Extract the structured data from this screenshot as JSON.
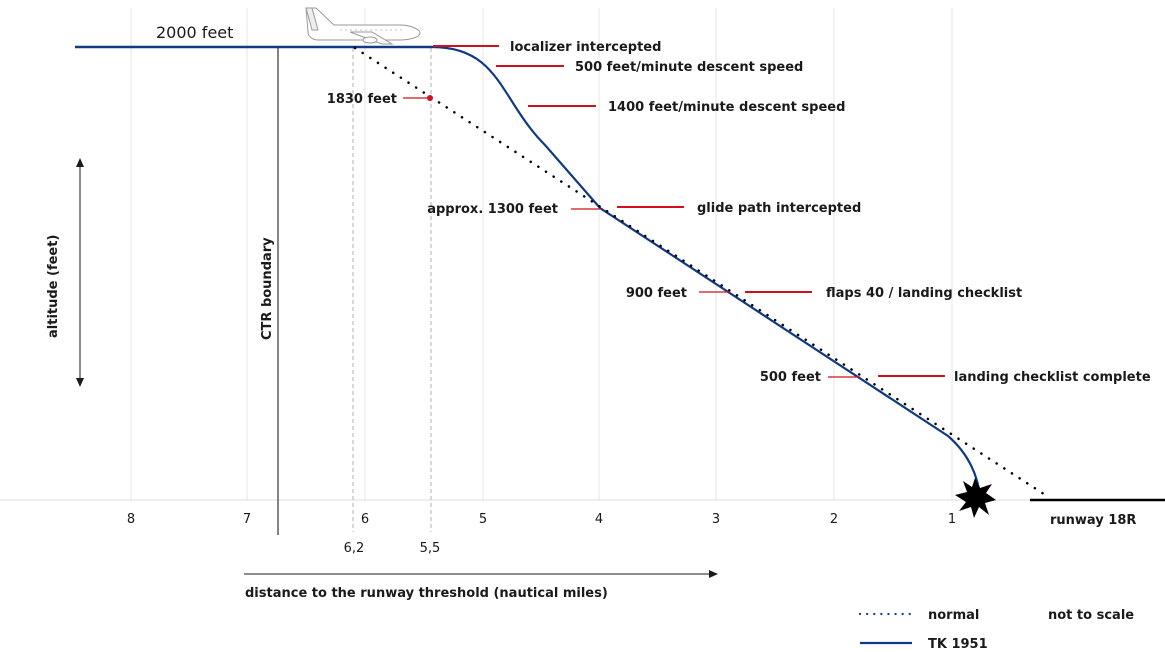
{
  "colors": {
    "normal": "#123a82",
    "tk1951": "#123a82",
    "annotation": "#d0101c",
    "axis": "#000000",
    "grid": "#e6e6e6"
  },
  "icons": {
    "aircraft": "airplane-icon",
    "crash": "impact-burst-icon"
  },
  "altitude_start": "2000 feet",
  "x_axis": {
    "label": "distance to the runway threshold (nautical miles)",
    "ticks": [
      "8",
      "7",
      "6",
      "5",
      "4",
      "3",
      "2",
      "1"
    ],
    "markers": [
      "6,2",
      "5,5"
    ]
  },
  "y_axis": {
    "label": "altitude (feet)"
  },
  "ctr_boundary": "CTR boundary",
  "runway": "runway 18R",
  "altitudes": {
    "a1830": "1830 feet",
    "a1300": "approx. 1300 feet",
    "a900": "900 feet",
    "a500": "500 feet"
  },
  "events": {
    "localizer": "localizer intercepted",
    "descent500": "500 feet/minute descent speed",
    "descent1400": "1400 feet/minute descent speed",
    "glidepath": "glide path intercepted",
    "flaps": "flaps 40 / landing checklist",
    "checklist": "landing checklist complete"
  },
  "legend": {
    "normal": "normal",
    "tk1951": "TK 1951"
  },
  "note": "not to scale"
}
